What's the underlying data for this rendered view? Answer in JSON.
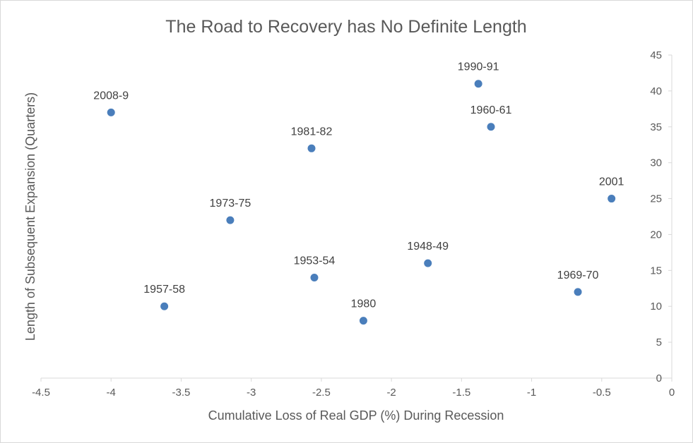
{
  "chart_data": {
    "type": "scatter",
    "title": "The Road to Recovery has No Definite Length",
    "xlabel": "Cumulative Loss of Real GDP (%) During Recession",
    "ylabel": "Length of Subsequent Expansion (Quarters)",
    "xlim": [
      -4.5,
      0
    ],
    "ylim": [
      0,
      45
    ],
    "x_ticks": [
      -4.5,
      -4,
      -3.5,
      -3,
      -2.5,
      -2,
      -1.5,
      -1,
      -0.5,
      0
    ],
    "y_ticks": [
      0,
      5,
      10,
      15,
      20,
      25,
      30,
      35,
      40,
      45
    ],
    "x_tick_labels": [
      "-4.5",
      "-4",
      "-3.5",
      "-3",
      "-2.5",
      "-2",
      "-1.5",
      "-1",
      "-0.5",
      "0"
    ],
    "y_tick_labels": [
      "0",
      "5",
      "10",
      "15",
      "20",
      "25",
      "30",
      "35",
      "40",
      "45"
    ],
    "y_axis_position": "right",
    "grid": false,
    "marker_color": "#4a7ebb",
    "points": [
      {
        "label": "2008-9",
        "x": -4.0,
        "y": 37
      },
      {
        "label": "1957-58",
        "x": -3.62,
        "y": 10
      },
      {
        "label": "1973-75",
        "x": -3.15,
        "y": 22
      },
      {
        "label": "1981-82",
        "x": -2.57,
        "y": 32
      },
      {
        "label": "1953-54",
        "x": -2.55,
        "y": 14
      },
      {
        "label": "1980",
        "x": -2.2,
        "y": 8
      },
      {
        "label": "1948-49",
        "x": -1.74,
        "y": 16
      },
      {
        "label": "1990-91",
        "x": -1.38,
        "y": 41
      },
      {
        "label": "1960-61",
        "x": -1.29,
        "y": 35
      },
      {
        "label": "1969-70",
        "x": -0.67,
        "y": 12
      },
      {
        "label": "2001",
        "x": -0.43,
        "y": 25
      }
    ]
  }
}
